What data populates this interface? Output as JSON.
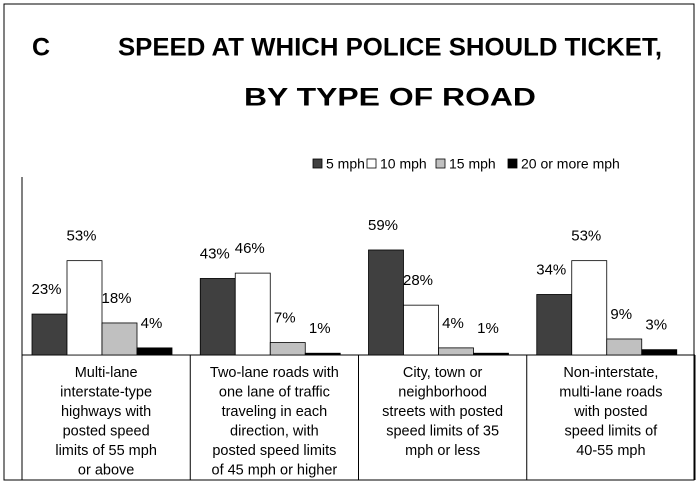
{
  "chart_data": {
    "type": "bar",
    "panel_label": "C",
    "title": [
      "SPEED AT WHICH POLICE SHOULD TICKET,",
      "BY TYPE OF ROAD"
    ],
    "categories": [
      [
        "Multi-lane",
        "interstate-type",
        "highways with",
        "posted speed",
        "limits of 55 mph",
        "or above"
      ],
      [
        "Two-lane roads with",
        "one lane of traffic",
        "traveling in each",
        "direction, with",
        "posted speed limits",
        "of 45 mph or higher"
      ],
      [
        "City, town or",
        "neighborhood",
        "streets with posted",
        "speed limits of 35",
        "mph or less"
      ],
      [
        "Non-interstate,",
        "multi-lane roads",
        "with posted",
        "speed limits of",
        "40-55 mph"
      ]
    ],
    "series": [
      {
        "name": "5 mph",
        "color": "#404040",
        "values": [
          23,
          43,
          59,
          34
        ],
        "value_labels": [
          "23%",
          "43%",
          "59%",
          "34%"
        ]
      },
      {
        "name": "10 mph",
        "color": "#ffffff",
        "values": [
          53,
          46,
          28,
          53
        ],
        "value_labels": [
          "53%",
          "46%",
          "28%",
          "53%"
        ]
      },
      {
        "name": "15 mph",
        "color": "#c0c0c0",
        "values": [
          18,
          7,
          4,
          9
        ],
        "value_labels": [
          "18%",
          "7%",
          "4%",
          "9%"
        ]
      },
      {
        "name": "20 or more mph",
        "color": "#000000",
        "values": [
          4,
          1,
          1,
          3
        ],
        "value_labels": [
          "4%",
          "1%",
          "1%",
          "3%"
        ]
      }
    ],
    "ylim": [
      0,
      100
    ],
    "legend": "top-right"
  }
}
